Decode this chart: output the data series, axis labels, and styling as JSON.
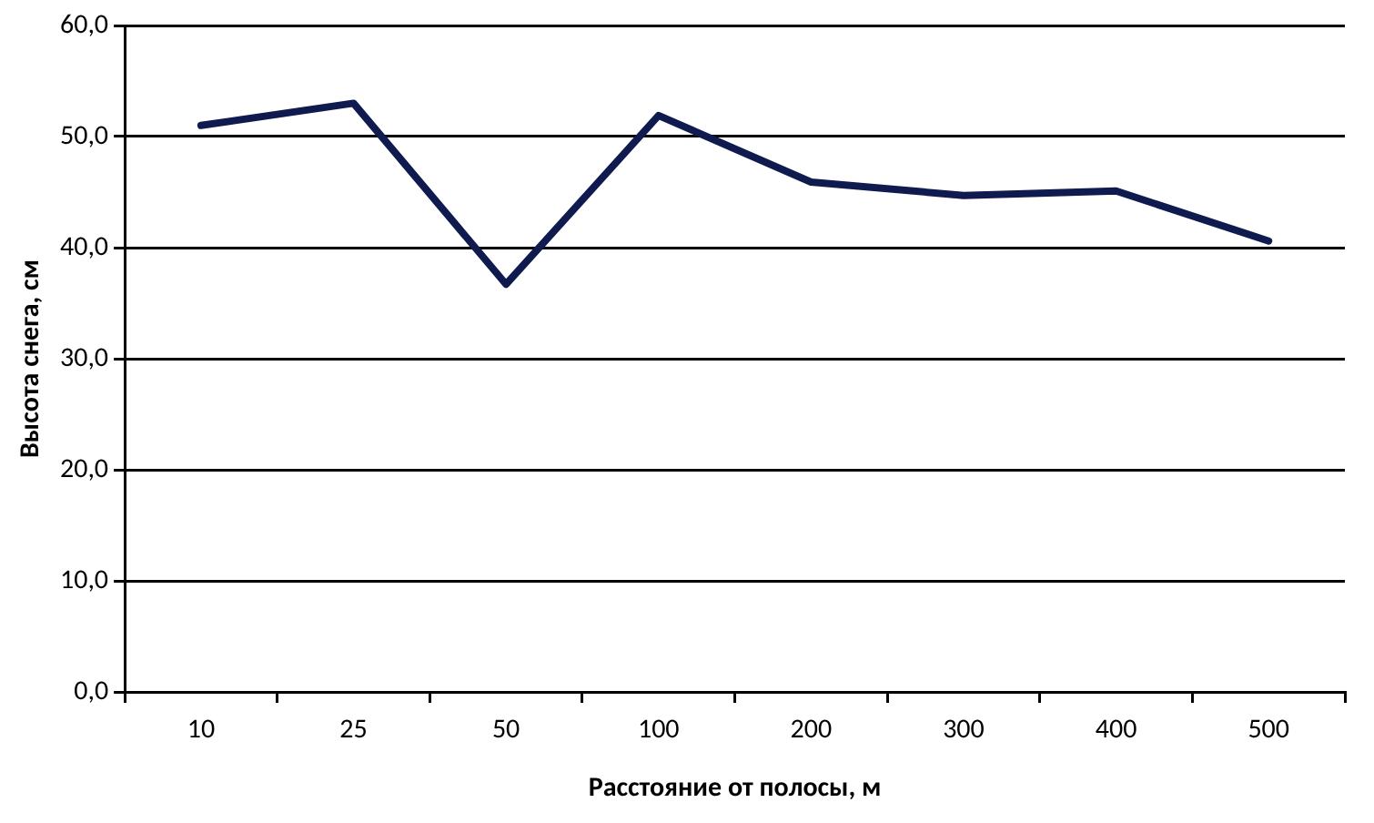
{
  "chart_data": {
    "type": "line",
    "xlabel": "Расстояние от полосы, м",
    "ylabel": "Высота снега, см",
    "categories": [
      "10",
      "25",
      "50",
      "100",
      "200",
      "300",
      "400",
      "500"
    ],
    "series": [
      {
        "color": "#0f1a4f",
        "values": [
          51.0,
          53.0,
          36.7,
          51.9,
          45.9,
          44.7,
          45.1,
          40.6
        ]
      }
    ],
    "ylim": [
      0,
      60
    ],
    "yticks": [
      {
        "value": 0,
        "label": "0,0"
      },
      {
        "value": 10,
        "label": "10,0"
      },
      {
        "value": 20,
        "label": "20,0"
      },
      {
        "value": 30,
        "label": "30,0"
      },
      {
        "value": 40,
        "label": "40,0"
      },
      {
        "value": 50,
        "label": "50,0"
      },
      {
        "value": 60,
        "label": "60,0"
      }
    ],
    "grid": "y",
    "legend": false,
    "marker": "none",
    "line_style": "solid"
  }
}
